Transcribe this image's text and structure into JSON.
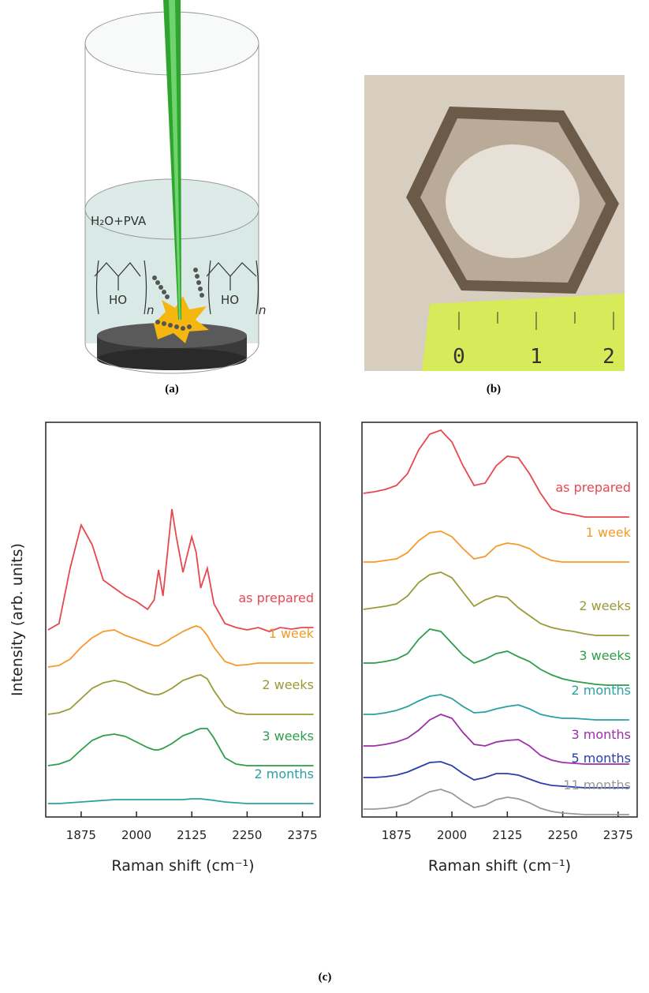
{
  "panel_a": {
    "caption": "(a)",
    "solution_label": "H₂O+PVA",
    "formula_left": {
      "group": "HO",
      "subscript": "n"
    },
    "formula_right": {
      "group": "HO",
      "subscript": "n"
    }
  },
  "panel_b": {
    "caption": "(b)",
    "ruler_labels": [
      "0",
      "1",
      "2"
    ]
  },
  "panel_c": {
    "caption": "(c)"
  },
  "chart_data": [
    {
      "type": "line",
      "xlabel": "Raman shift (cm⁻¹)",
      "ylabel": "Intensity (arb. units)",
      "xlim": [
        1795,
        2415
      ],
      "ylim": [
        0,
        500
      ],
      "xticks": [
        1875,
        2000,
        2125,
        2250,
        2375
      ],
      "x": [
        1800,
        1825,
        1850,
        1875,
        1900,
        1925,
        1950,
        1975,
        2000,
        2025,
        2040,
        2050,
        2060,
        2070,
        2080,
        2090,
        2105,
        2125,
        2135,
        2145,
        2160,
        2175,
        2200,
        2225,
        2250,
        2275,
        2300,
        2325,
        2350,
        2375,
        2400
      ],
      "series": [
        {
          "name": "as prepared",
          "color": "#e8474f",
          "values": [
            237,
            245,
            315,
            370,
            345,
            300,
            290,
            280,
            273,
            263,
            275,
            313,
            280,
            335,
            390,
            355,
            310,
            355,
            335,
            290,
            315,
            270,
            245,
            240,
            237,
            240,
            235,
            240,
            238,
            240,
            240
          ]
        },
        {
          "name": "1 week",
          "color": "#f59a2a",
          "values": [
            190,
            192,
            200,
            215,
            227,
            235,
            237,
            230,
            225,
            220,
            217,
            217,
            220,
            223,
            227,
            230,
            235,
            240,
            242,
            240,
            230,
            215,
            197,
            192,
            193,
            195,
            195,
            195,
            195,
            195,
            195
          ]
        },
        {
          "name": "2 weeks",
          "color": "#9a9a3a",
          "values": [
            130,
            132,
            137,
            150,
            163,
            170,
            173,
            170,
            163,
            157,
            155,
            155,
            157,
            160,
            163,
            167,
            173,
            177,
            179,
            180,
            175,
            160,
            140,
            132,
            130,
            130,
            130,
            130,
            130,
            130,
            130
          ]
        },
        {
          "name": "3 weeks",
          "color": "#2e9e4a",
          "values": [
            65,
            67,
            72,
            85,
            97,
            103,
            105,
            102,
            95,
            88,
            85,
            85,
            87,
            90,
            93,
            97,
            103,
            107,
            110,
            112,
            112,
            100,
            75,
            67,
            65,
            65,
            65,
            65,
            65,
            65,
            65
          ]
        },
        {
          "name": "2 months",
          "color": "#2aa0a0",
          "values": [
            17,
            17,
            18,
            19,
            20,
            21,
            22,
            22,
            22,
            22,
            22,
            22,
            22,
            22,
            22,
            22,
            22,
            23,
            23,
            23,
            22,
            21,
            19,
            18,
            17,
            17,
            17,
            17,
            17,
            17,
            17
          ]
        }
      ]
    },
    {
      "type": "line",
      "xlabel": "Raman shift (cm⁻¹)",
      "xlim": [
        1797,
        2418
      ],
      "ylim": [
        0,
        500
      ],
      "xticks": [
        1875,
        2000,
        2125,
        2250,
        2375
      ],
      "x": [
        1800,
        1825,
        1850,
        1875,
        1900,
        1925,
        1950,
        1975,
        2000,
        2025,
        2050,
        2075,
        2100,
        2125,
        2150,
        2175,
        2200,
        2225,
        2250,
        2275,
        2300,
        2325,
        2350,
        2375,
        2400
      ],
      "series": [
        {
          "name": "as prepared",
          "color": "#e8474f",
          "values": [
            410,
            412,
            415,
            420,
            435,
            465,
            485,
            490,
            475,
            445,
            420,
            423,
            445,
            457,
            455,
            435,
            410,
            390,
            385,
            383,
            380,
            380,
            380,
            380,
            380
          ]
        },
        {
          "name": "1 week",
          "color": "#f59a2a",
          "values": [
            323,
            323,
            325,
            327,
            335,
            350,
            360,
            362,
            355,
            340,
            327,
            330,
            343,
            347,
            345,
            340,
            330,
            325,
            323,
            323,
            323,
            323,
            323,
            323,
            323
          ]
        },
        {
          "name": "2 weeks",
          "color": "#9a9a3a",
          "values": [
            263,
            265,
            267,
            270,
            280,
            297,
            307,
            310,
            303,
            285,
            267,
            275,
            280,
            278,
            265,
            255,
            245,
            240,
            237,
            235,
            232,
            230,
            230,
            230,
            230
          ]
        },
        {
          "name": "3 weeks",
          "color": "#2e9e4a",
          "values": [
            195,
            195,
            197,
            200,
            207,
            225,
            238,
            235,
            220,
            205,
            195,
            200,
            207,
            210,
            203,
            197,
            187,
            180,
            175,
            172,
            170,
            168,
            167,
            167,
            167
          ]
        },
        {
          "name": "2 months",
          "color": "#2aa0a0",
          "values": [
            130,
            130,
            132,
            135,
            140,
            147,
            153,
            155,
            150,
            140,
            132,
            133,
            137,
            140,
            142,
            137,
            130,
            127,
            125,
            125,
            124,
            123,
            123,
            123,
            123
          ]
        },
        {
          "name": "3 months",
          "color": "#9b2fa8",
          "values": [
            90,
            90,
            92,
            95,
            100,
            110,
            123,
            130,
            125,
            107,
            92,
            90,
            95,
            97,
            98,
            90,
            78,
            72,
            69,
            68,
            67,
            67,
            67,
            67,
            67
          ]
        },
        {
          "name": "5 months",
          "color": "#2b3ea8",
          "values": [
            50,
            50,
            51,
            53,
            57,
            63,
            69,
            70,
            65,
            55,
            47,
            50,
            55,
            55,
            53,
            48,
            43,
            40,
            39,
            38,
            37,
            37,
            37,
            37,
            37
          ]
        },
        {
          "name": "11 months",
          "color": "#9a9a9a",
          "values": [
            10,
            10,
            11,
            13,
            17,
            25,
            32,
            35,
            30,
            20,
            12,
            15,
            22,
            25,
            23,
            18,
            11,
            7,
            5,
            4,
            3,
            3,
            3,
            3,
            3
          ]
        }
      ]
    }
  ]
}
